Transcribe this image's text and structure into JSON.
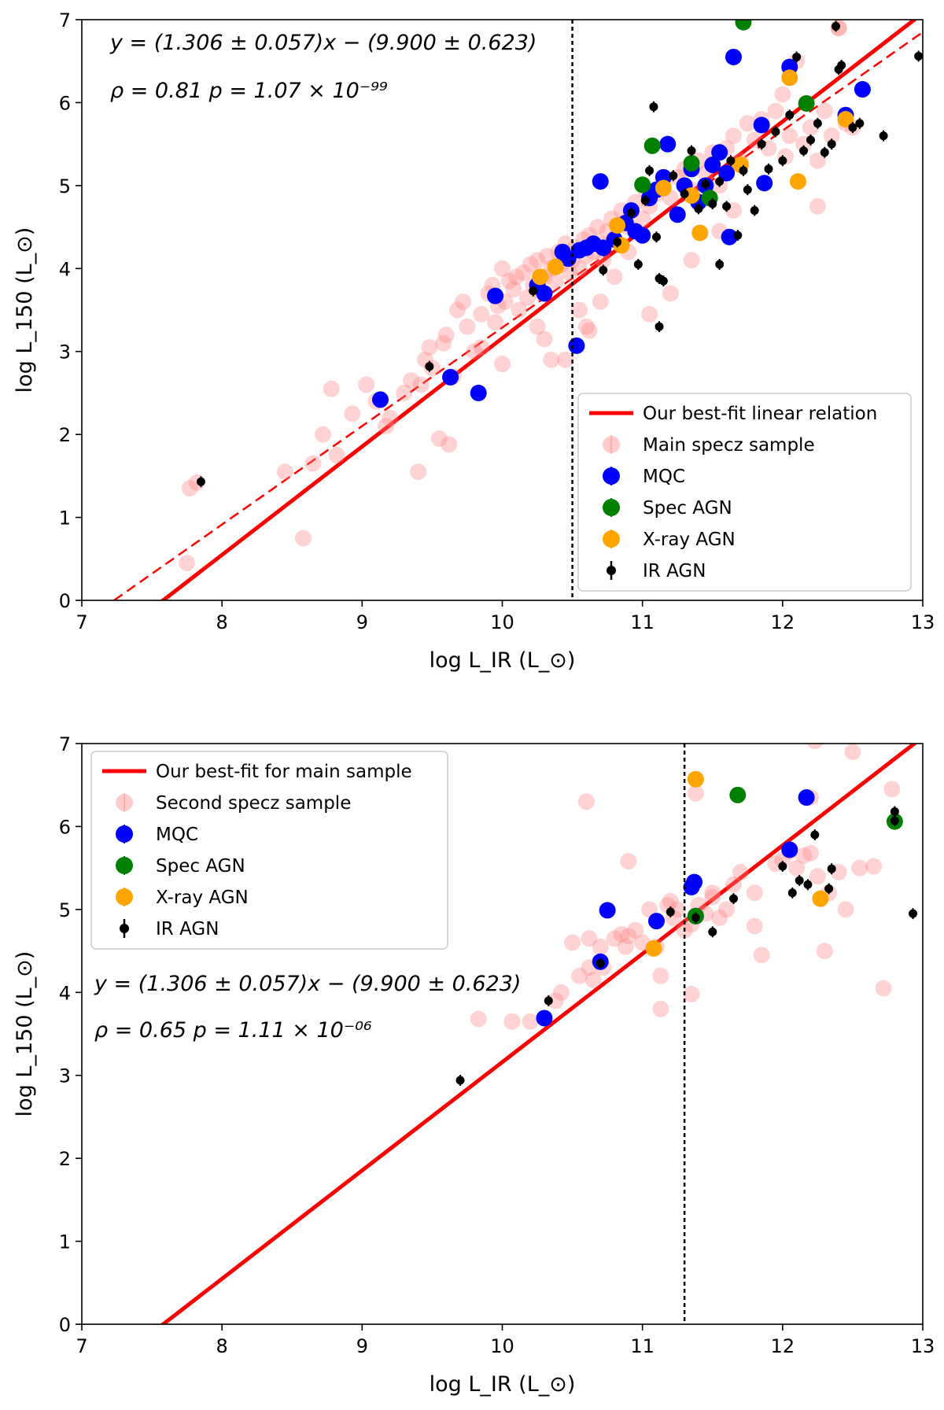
{
  "chart_data": [
    {
      "type": "scatter",
      "xlabel": "log L_IR (L_⊙)",
      "ylabel": "log L_150 (L_⊙)",
      "xlim": [
        7,
        13
      ],
      "ylim": [
        0,
        7
      ],
      "xticks": [
        "7",
        "8",
        "9",
        "10",
        "11",
        "12",
        "13"
      ],
      "yticks": [
        "0",
        "1",
        "2",
        "3",
        "4",
        "5",
        "6",
        "7"
      ],
      "annotation_line1": "y = (1.306 ± 0.057)x − (9.900 ± 0.623)",
      "annotation_line2": "ρ = 0.81     p = 1.07 × 10⁻⁹⁹",
      "vline_x": 10.5,
      "legend_position": "lower-right",
      "lines": [
        {
          "name": "Our best-fit linear relation",
          "color": "#ff0000",
          "style": "solid",
          "slope": 1.306,
          "intercept": -9.9
        },
        {
          "name": "dashed comparison relation",
          "color": "#ff0000",
          "style": "dashed",
          "x": [
            7.23,
            13.0
          ],
          "y": [
            0.0,
            6.85
          ]
        }
      ],
      "series": [
        {
          "name": "Main specz sample",
          "color": "#ff8080",
          "x": [
            7.75,
            7.77,
            7.82,
            8.45,
            8.58,
            8.65,
            8.72,
            8.78,
            8.82,
            8.93,
            9.03,
            9.1,
            9.17,
            9.2,
            9.3,
            9.35,
            9.4,
            9.45,
            9.48,
            9.5,
            9.55,
            9.58,
            9.6,
            9.62,
            9.68,
            9.72,
            9.75,
            9.8,
            9.85,
            9.9,
            9.93,
            9.95,
            9.97,
            10.0,
            10.02,
            10.05,
            10.08,
            10.1,
            10.12,
            10.15,
            10.18,
            10.2,
            10.22,
            10.25,
            10.28,
            10.3,
            10.32,
            10.35,
            10.38,
            10.4,
            10.42,
            10.45,
            10.48,
            10.5,
            10.52,
            10.55,
            10.58,
            10.6,
            10.62,
            10.65,
            10.68,
            10.7,
            10.72,
            10.75,
            10.78,
            10.8,
            10.85,
            10.9,
            10.95,
            11.0,
            11.02,
            11.05,
            11.1,
            11.15,
            11.2,
            11.25,
            11.3,
            11.35,
            11.4,
            11.45,
            11.5,
            11.55,
            11.6,
            11.65,
            11.7,
            11.75,
            11.8,
            11.85,
            11.9,
            11.95,
            12.0,
            12.05,
            12.1,
            12.15,
            12.2,
            12.25,
            12.3,
            12.35,
            12.4,
            12.45,
            12.5,
            10.6,
            10.7,
            10.8,
            10.9,
            10.35,
            10.55,
            10.25,
            9.65,
            9.42,
            10.0,
            9.85,
            10.62,
            10.3,
            10.45,
            11.05,
            11.2,
            11.35,
            11.55,
            11.65,
            12.25,
            12.02,
            12.4
          ],
          "y": [
            0.45,
            1.35,
            1.42,
            1.55,
            0.75,
            1.65,
            2.0,
            2.55,
            1.75,
            2.25,
            2.6,
            2.4,
            2.1,
            2.2,
            2.5,
            2.65,
            1.55,
            2.9,
            3.05,
            2.8,
            1.95,
            3.1,
            3.2,
            1.88,
            3.5,
            3.6,
            3.3,
            3.0,
            3.45,
            3.7,
            3.8,
            3.35,
            3.55,
            4.0,
            3.6,
            3.85,
            3.75,
            3.9,
            3.5,
            3.95,
            3.65,
            4.05,
            3.8,
            4.1,
            3.7,
            3.9,
            4.15,
            4.0,
            3.85,
            4.2,
            4.05,
            4.3,
            3.95,
            4.1,
            4.25,
            4.0,
            4.35,
            4.15,
            4.4,
            4.2,
            4.5,
            4.3,
            4.1,
            4.45,
            4.6,
            4.35,
            4.7,
            4.5,
            4.8,
            4.6,
            4.95,
            4.75,
            4.9,
            5.0,
            4.85,
            5.1,
            5.2,
            4.95,
            5.3,
            5.15,
            5.4,
            5.0,
            5.45,
            5.6,
            5.3,
            5.75,
            5.55,
            5.8,
            5.45,
            5.9,
            6.1,
            5.6,
            6.5,
            5.5,
            5.7,
            4.75,
            5.9,
            5.6,
            6.9,
            5.75,
            5.7,
            3.3,
            3.6,
            3.9,
            4.2,
            2.9,
            3.5,
            3.3,
            2.7,
            2.6,
            2.85,
            3.05,
            3.25,
            3.15,
            2.9,
            3.45,
            3.7,
            4.1,
            4.45,
            4.7,
            5.3,
            5.35,
            6.9
          ]
        },
        {
          "name": "MQC",
          "color": "#0000ff",
          "x": [
            9.13,
            9.63,
            9.83,
            9.95,
            10.25,
            10.3,
            10.43,
            10.47,
            10.53,
            10.55,
            10.6,
            10.65,
            10.7,
            10.72,
            10.8,
            10.88,
            10.92,
            10.95,
            11.0,
            11.05,
            11.1,
            11.15,
            11.18,
            11.25,
            11.3,
            11.35,
            11.4,
            11.45,
            11.5,
            11.55,
            11.6,
            11.62,
            11.65,
            11.85,
            11.87,
            12.05,
            12.45,
            12.57
          ],
          "y": [
            2.42,
            2.69,
            2.5,
            3.67,
            3.8,
            3.7,
            4.2,
            4.12,
            3.07,
            4.22,
            4.25,
            4.3,
            5.05,
            4.25,
            4.35,
            4.55,
            4.7,
            4.45,
            4.4,
            4.85,
            4.95,
            5.1,
            5.5,
            4.65,
            5.0,
            5.2,
            4.8,
            5.0,
            5.25,
            5.4,
            5.15,
            4.38,
            6.55,
            5.73,
            5.03,
            6.43,
            5.85,
            6.16
          ]
        },
        {
          "name": "Spec AGN",
          "color": "#008000",
          "x": [
            11.07,
            11.35,
            11.48,
            11.72,
            12.17,
            11.0
          ],
          "y": [
            5.48,
            5.27,
            4.85,
            6.97,
            5.99,
            5.01
          ]
        },
        {
          "name": "X-ray AGN",
          "color": "#ffa500",
          "x": [
            10.27,
            10.38,
            10.82,
            10.85,
            11.15,
            11.35,
            11.41,
            11.7,
            12.05,
            12.11,
            12.45
          ],
          "y": [
            3.9,
            4.02,
            4.52,
            4.28,
            4.97,
            4.88,
            4.43,
            5.25,
            6.3,
            5.05,
            5.8
          ]
        },
        {
          "name": "IR AGN",
          "color": "#000000",
          "x": [
            7.85,
            9.48,
            10.22,
            10.72,
            10.82,
            10.92,
            10.97,
            11.02,
            11.05,
            11.1,
            11.12,
            11.15,
            11.22,
            11.3,
            11.35,
            11.4,
            11.45,
            11.5,
            11.55,
            11.6,
            11.63,
            11.68,
            11.72,
            11.75,
            11.8,
            11.85,
            11.9,
            11.95,
            12.0,
            12.05,
            12.1,
            12.15,
            12.2,
            12.25,
            12.3,
            12.35,
            12.4,
            12.42,
            12.5,
            12.55,
            12.72,
            12.97,
            11.12,
            11.55,
            11.08,
            12.38
          ],
          "y": [
            1.43,
            2.82,
            3.73,
            3.98,
            4.32,
            4.67,
            4.05,
            4.82,
            5.18,
            4.38,
            3.88,
            3.85,
            5.12,
            4.9,
            5.42,
            4.72,
            5.02,
            4.78,
            5.05,
            4.75,
            5.3,
            4.4,
            5.18,
            4.95,
            4.7,
            5.5,
            5.2,
            5.65,
            5.3,
            5.85,
            6.55,
            5.42,
            5.55,
            5.75,
            5.4,
            5.5,
            6.4,
            6.45,
            5.7,
            5.75,
            5.6,
            6.56,
            3.3,
            4.05,
            5.95,
            6.92
          ]
        }
      ],
      "legend": [
        {
          "label": "Our best-fit linear relation",
          "kind": "line",
          "color": "#ff0000"
        },
        {
          "label": "Main specz sample",
          "kind": "marker",
          "color": "#ff8080"
        },
        {
          "label": "MQC",
          "kind": "marker",
          "color": "#0000ff"
        },
        {
          "label": "Spec AGN",
          "kind": "marker",
          "color": "#008000"
        },
        {
          "label": "X-ray AGN",
          "kind": "marker",
          "color": "#ffa500"
        },
        {
          "label": "IR AGN",
          "kind": "smallmarker",
          "color": "#000000"
        }
      ]
    },
    {
      "type": "scatter",
      "xlabel": "log L_IR (L_⊙)",
      "ylabel": "log L_150 (L_⊙)",
      "xlim": [
        7,
        13
      ],
      "ylim": [
        0,
        7
      ],
      "xticks": [
        "7",
        "8",
        "9",
        "10",
        "11",
        "12",
        "13"
      ],
      "yticks": [
        "0",
        "1",
        "2",
        "3",
        "4",
        "5",
        "6",
        "7"
      ],
      "annotation_line1": "y = (1.306 ± 0.057)x − (9.900 ± 0.623)",
      "annotation_line2": "ρ = 0.65   p = 1.11 × 10⁻⁰⁶",
      "vline_x": 11.3,
      "legend_position": "top-left",
      "lines": [
        {
          "name": "Our best-fit for main sample",
          "color": "#ff0000",
          "style": "solid",
          "slope": 1.306,
          "intercept": -9.9
        }
      ],
      "series": [
        {
          "name": "Second specz sample",
          "color": "#ff8080",
          "x": [
            9.83,
            10.07,
            10.2,
            10.38,
            10.42,
            10.5,
            10.55,
            10.6,
            10.62,
            10.65,
            10.7,
            10.72,
            10.8,
            10.85,
            10.88,
            10.9,
            10.95,
            11.0,
            11.05,
            11.1,
            11.13,
            11.18,
            11.22,
            11.25,
            11.3,
            11.35,
            11.4,
            11.45,
            11.5,
            11.55,
            11.6,
            11.65,
            11.7,
            11.8,
            11.85,
            11.95,
            12.0,
            12.05,
            12.1,
            12.15,
            12.2,
            12.25,
            12.3,
            12.4,
            12.5,
            12.55,
            12.65,
            12.72,
            12.78,
            12.2,
            12.45,
            11.38,
            11.2,
            11.5,
            10.62,
            11.8,
            12.33,
            10.9,
            11.35,
            11.13,
            12.23
          ],
          "y": [
            3.68,
            3.65,
            3.65,
            3.9,
            4.0,
            4.6,
            4.2,
            6.3,
            4.65,
            4.15,
            4.55,
            4.3,
            4.65,
            4.7,
            4.55,
            5.58,
            4.75,
            4.6,
            5.0,
            4.55,
            4.2,
            5.05,
            4.9,
            5.0,
            4.75,
            3.98,
            5.05,
            4.95,
            5.2,
            4.9,
            5.0,
            5.3,
            5.45,
            5.2,
            4.45,
            5.55,
            5.6,
            5.7,
            5.5,
            5.65,
            6.35,
            5.4,
            4.5,
            5.45,
            6.9,
            5.5,
            5.52,
            4.05,
            6.45,
            5.68,
            5.0,
            6.4,
            5.1,
            5.15,
            4.3,
            4.8,
            5.2,
            4.68,
            4.82,
            3.8,
            7.03
          ]
        },
        {
          "name": "MQC",
          "color": "#0000ff",
          "x": [
            10.3,
            10.7,
            10.75,
            11.1,
            11.35,
            11.37,
            11.38,
            12.05,
            12.17
          ],
          "y": [
            3.69,
            4.37,
            4.99,
            4.86,
            5.27,
            5.33,
            4.92,
            5.72,
            6.35
          ]
        },
        {
          "name": "Spec AGN",
          "color": "#008000",
          "x": [
            11.38,
            11.68,
            12.8
          ],
          "y": [
            4.92,
            6.38,
            6.06
          ]
        },
        {
          "name": "X-ray AGN",
          "color": "#ffa500",
          "x": [
            11.08,
            11.38,
            12.27
          ],
          "y": [
            4.53,
            6.57,
            5.13
          ]
        },
        {
          "name": "IR AGN",
          "color": "#000000",
          "x": [
            9.7,
            10.33,
            10.7,
            11.2,
            11.38,
            11.5,
            11.65,
            12.0,
            12.07,
            12.12,
            12.18,
            12.23,
            12.33,
            12.35,
            12.8,
            12.93,
            12.8
          ],
          "y": [
            2.94,
            3.9,
            4.35,
            4.97,
            4.9,
            4.73,
            5.13,
            5.52,
            5.2,
            5.35,
            5.3,
            5.9,
            5.25,
            5.49,
            6.18,
            4.95,
            6.07
          ]
        }
      ],
      "legend": [
        {
          "label": "Our best-fit for main sample",
          "kind": "line",
          "color": "#ff0000"
        },
        {
          "label": "Second specz sample",
          "kind": "marker",
          "color": "#ff8080"
        },
        {
          "label": "MQC",
          "kind": "marker",
          "color": "#0000ff"
        },
        {
          "label": "Spec AGN",
          "kind": "marker",
          "color": "#008000"
        },
        {
          "label": "X-ray AGN",
          "kind": "marker",
          "color": "#ffa500"
        },
        {
          "label": "IR AGN",
          "kind": "smallmarker",
          "color": "#000000"
        }
      ]
    }
  ]
}
